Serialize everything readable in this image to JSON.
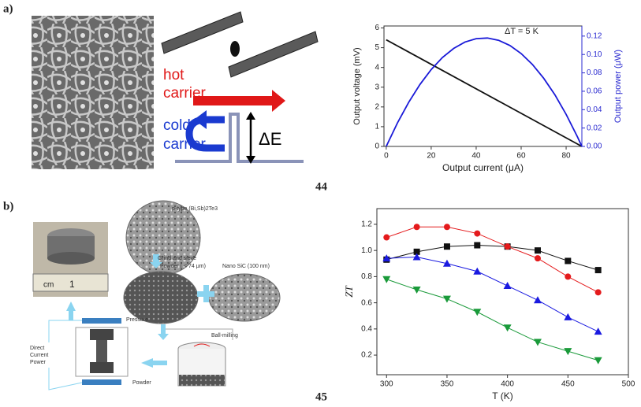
{
  "panels": {
    "a": "a)",
    "b": "b)",
    "ref_a": "44",
    "ref_b": "45"
  },
  "schematic_a": {
    "hot": [
      "hot",
      "carrier"
    ],
    "cold": [
      "cold",
      "carrier"
    ],
    "gap": "ΔE"
  },
  "schematic_b": {
    "material": "p-type (Bi,Sb)2Te3",
    "grind": "Grind and sieve",
    "powder_size": "Powder ( < 74 μm)",
    "sic": "Nano SiC  (100 nm)",
    "ball": "Ball-milling",
    "pressure": "Pressure",
    "powder": "Powder",
    "dc": [
      "Direct",
      "Current",
      "Power"
    ],
    "ruler": [
      "cm",
      "1"
    ]
  },
  "chart_data": [
    {
      "type": "line",
      "annotation": "ΔT = 5 K",
      "x_label": "Output current (μA)",
      "y_label": "Output voltage (mV)",
      "y2_label": "Output power (μW)",
      "xlim": [
        -1,
        87
      ],
      "xticks": [
        0,
        20,
        40,
        60,
        80
      ],
      "ylim": [
        0,
        6.1
      ],
      "yticks": [
        0,
        1,
        2,
        3,
        4,
        5,
        6
      ],
      "y2lim": [
        0,
        0.131
      ],
      "y2ticks": [
        {
          "value": 0,
          "label": "0.00"
        },
        {
          "value": 0.02,
          "label": "0.02"
        },
        {
          "value": 0.04,
          "label": "0.04"
        },
        {
          "value": 0.06,
          "label": "0.06"
        },
        {
          "value": 0.08,
          "label": "0.08"
        },
        {
          "value": 0.1,
          "label": "0.10"
        },
        {
          "value": 0.12,
          "label": "0.12"
        }
      ],
      "y2color": "#2a2ad0",
      "series": [
        {
          "name": "Output voltage",
          "color": "#111111",
          "x": [
            0,
            87
          ],
          "values": [
            5.4,
            0
          ]
        },
        {
          "name": "Output power",
          "color": "#1a1ad8",
          "axis": "y2",
          "x": [
            0,
            5,
            10,
            15,
            20,
            25,
            30,
            35,
            40,
            45,
            50,
            55,
            60,
            65,
            70,
            75,
            80,
            85,
            87
          ],
          "values": [
            0,
            0.0256,
            0.048,
            0.0674,
            0.0836,
            0.0967,
            0.1066,
            0.1135,
            0.1172,
            0.1179,
            0.1154,
            0.1098,
            0.101,
            0.0892,
            0.0742,
            0.0562,
            0.0349,
            0.0106,
            0
          ]
        }
      ]
    },
    {
      "type": "line",
      "x_label": "T (K)",
      "y_label": "ZT",
      "xlim": [
        292,
        500
      ],
      "xticks": [
        300,
        350,
        400,
        450,
        500
      ],
      "ylim": [
        0.05,
        1.32
      ],
      "yticks": [
        0.2,
        0.4,
        0.6,
        0.8,
        {
          "value": 1,
          "label": "1.0"
        },
        1.2
      ],
      "x": [
        300,
        325,
        350,
        375,
        400,
        425,
        450,
        475
      ],
      "series": [
        {
          "color": "#111111",
          "marker": "square",
          "values": [
            0.93,
            0.99,
            1.03,
            1.04,
            1.03,
            1.0,
            0.92,
            0.85
          ]
        },
        {
          "color": "#e41a1c",
          "marker": "circle",
          "values": [
            1.1,
            1.18,
            1.18,
            1.13,
            1.03,
            0.94,
            0.8,
            0.68
          ]
        },
        {
          "color": "#1a1ae0",
          "marker": "up",
          "values": [
            0.94,
            0.95,
            0.9,
            0.84,
            0.73,
            0.62,
            0.49,
            0.38
          ]
        },
        {
          "color": "#1a9a3a",
          "marker": "down",
          "values": [
            0.78,
            0.7,
            0.63,
            0.53,
            0.41,
            0.3,
            0.23,
            0.16
          ]
        }
      ]
    }
  ]
}
